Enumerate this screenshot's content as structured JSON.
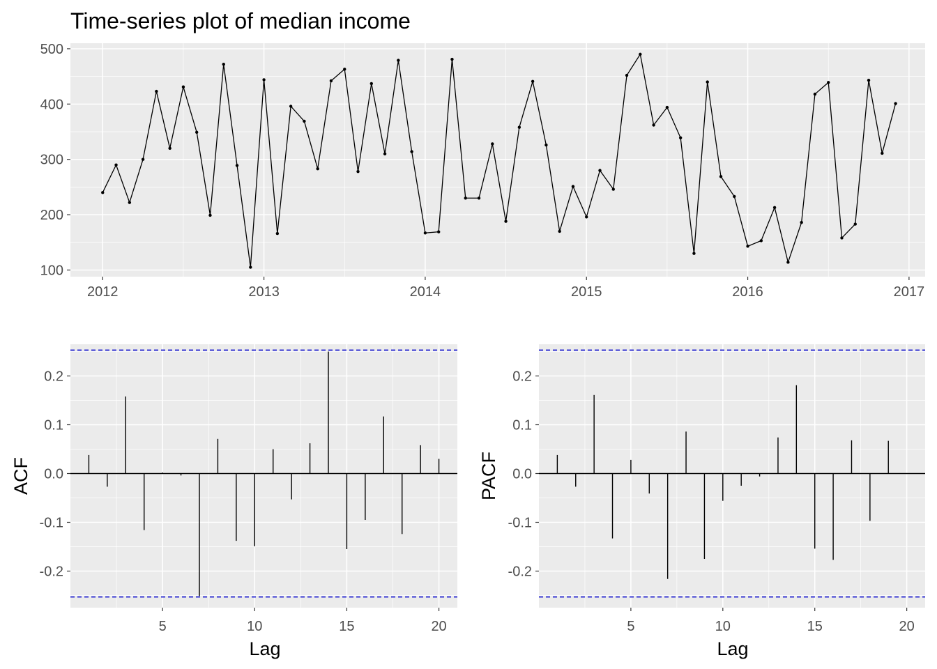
{
  "chart_data": [
    {
      "type": "line",
      "title": "Time-series plot of median income",
      "xlabel": "",
      "ylabel": "",
      "x_start": "2012-01",
      "frequency": "monthly",
      "xlim": [
        2011.8,
        2017.1
      ],
      "ylim": [
        88,
        510
      ],
      "x_ticks": [
        "2012",
        "2013",
        "2014",
        "2015",
        "2016",
        "2017"
      ],
      "y_ticks": [
        "100",
        "200",
        "300",
        "400",
        "500"
      ],
      "grid": true,
      "values": [
        240,
        290,
        222,
        300,
        423,
        320,
        431,
        349,
        199,
        472,
        289,
        105,
        444,
        166,
        396,
        369,
        283,
        442,
        463,
        278,
        437,
        310,
        479,
        314,
        167,
        169,
        481,
        230,
        230,
        328,
        188,
        358,
        441,
        326,
        170,
        251,
        196,
        280,
        246,
        452,
        490,
        362,
        394,
        339,
        130,
        440,
        269,
        233,
        143,
        153,
        213,
        114,
        186,
        418,
        439,
        158,
        183,
        443,
        311,
        401
      ]
    },
    {
      "type": "bar",
      "title": "",
      "xlabel": "Lag",
      "ylabel": "ACF",
      "xlim": [
        0,
        21
      ],
      "ylim": [
        -0.275,
        0.265
      ],
      "x_ticks": [
        "5",
        "10",
        "15",
        "20"
      ],
      "y_ticks": [
        "-0.2",
        "-0.1",
        "0.0",
        "0.1",
        "0.2"
      ],
      "lags": [
        1,
        2,
        3,
        4,
        5,
        6,
        7,
        8,
        9,
        10,
        11,
        12,
        13,
        14,
        15,
        16,
        17,
        18,
        19,
        20
      ],
      "values": [
        0.038,
        -0.027,
        0.158,
        -0.116,
        0.002,
        -0.004,
        -0.251,
        0.071,
        -0.138,
        -0.149,
        0.05,
        -0.053,
        0.062,
        0.25,
        -0.155,
        -0.095,
        0.117,
        -0.124,
        0.058,
        0.03
      ],
      "confidence_bounds": [
        -0.253,
        0.253
      ]
    },
    {
      "type": "bar",
      "title": "",
      "xlabel": "Lag",
      "ylabel": "PACF",
      "xlim": [
        0,
        21
      ],
      "ylim": [
        -0.275,
        0.265
      ],
      "x_ticks": [
        "5",
        "10",
        "15",
        "20"
      ],
      "y_ticks": [
        "-0.2",
        "-0.1",
        "0.0",
        "0.1",
        "0.2"
      ],
      "lags": [
        1,
        2,
        3,
        4,
        5,
        6,
        7,
        8,
        9,
        10,
        11,
        12,
        13,
        14,
        15,
        16,
        17,
        18,
        19
      ],
      "values": [
        0.038,
        -0.027,
        0.161,
        -0.133,
        0.028,
        -0.041,
        -0.216,
        0.086,
        -0.175,
        -0.056,
        -0.025,
        -0.006,
        0.074,
        0.181,
        -0.154,
        -0.177,
        0.068,
        -0.097,
        0.067
      ],
      "confidence_bounds": [
        -0.253,
        0.253
      ]
    }
  ],
  "colors": {
    "panel_background": "#ebebeb",
    "grid_major": "#ffffff",
    "series": "#000000",
    "confidence_line": "#0000cc",
    "tick_text": "#4d4d4d",
    "zero_line": "#000000"
  }
}
